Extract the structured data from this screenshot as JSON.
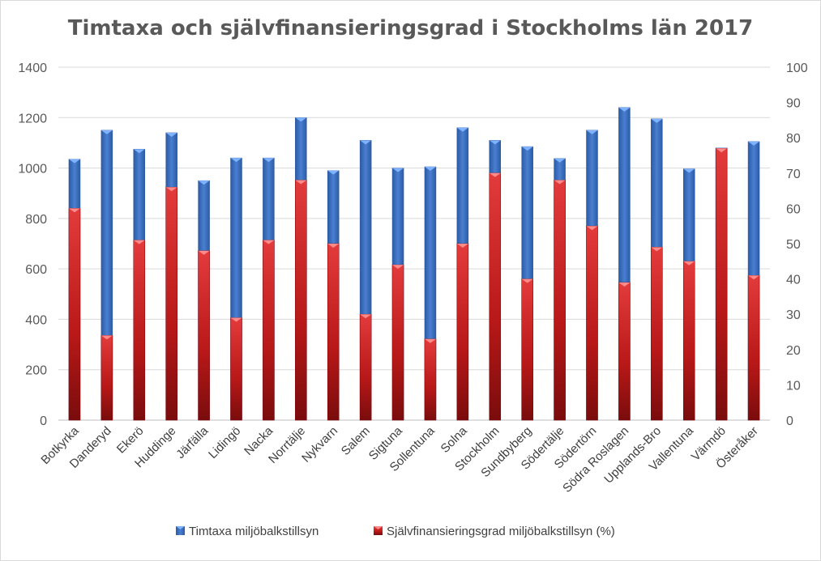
{
  "chart_data": {
    "type": "bar",
    "title": "Timtaxa och självfinansieringsgrad i Stockholms län 2017",
    "categories": [
      "Botkyrka",
      "Danderyd",
      "Ekerö",
      "Huddinge",
      "Järfälla",
      "Lidingö",
      "Nacka",
      "Norrtälje",
      "Nykvarn",
      "Salem",
      "Sigtuna",
      "Sollentuna",
      "Solna",
      "Stockholm",
      "Sundbyberg",
      "Södertälje",
      "Södertörn",
      "Södra Roslagen",
      "Upplands-Bro",
      "Vallentuna",
      "Värmdö",
      "Österåker"
    ],
    "series": [
      {
        "name": "Timtaxa miljöbalkstillsyn",
        "axis": "left",
        "color": "#4472c4",
        "values": [
          1035,
          1150,
          1075,
          1140,
          950,
          1040,
          1040,
          1200,
          990,
          1110,
          1000,
          1005,
          1160,
          1110,
          1085,
          1038,
          1150,
          1240,
          1195,
          997,
          1080,
          1105
        ]
      },
      {
        "name": "Självfinansieringsgrad miljöbalkstillsyn (%)",
        "axis": "right",
        "color": "#c00000",
        "values": [
          60,
          24,
          51,
          66,
          48,
          29,
          51,
          68,
          50,
          30,
          44,
          23,
          50,
          70,
          40,
          68,
          55,
          39,
          49,
          45,
          77,
          41
        ]
      }
    ],
    "y_left": {
      "min": 0,
      "max": 1400,
      "ticks": [
        "0",
        "200",
        "400",
        "600",
        "800",
        "1000",
        "1200",
        "1400"
      ]
    },
    "y_right": {
      "min": 0,
      "max": 100,
      "ticks": [
        "0",
        "10",
        "20",
        "30",
        "40",
        "50",
        "60",
        "70",
        "80",
        "90",
        "100"
      ]
    },
    "grid": true,
    "legend": "bottom"
  }
}
